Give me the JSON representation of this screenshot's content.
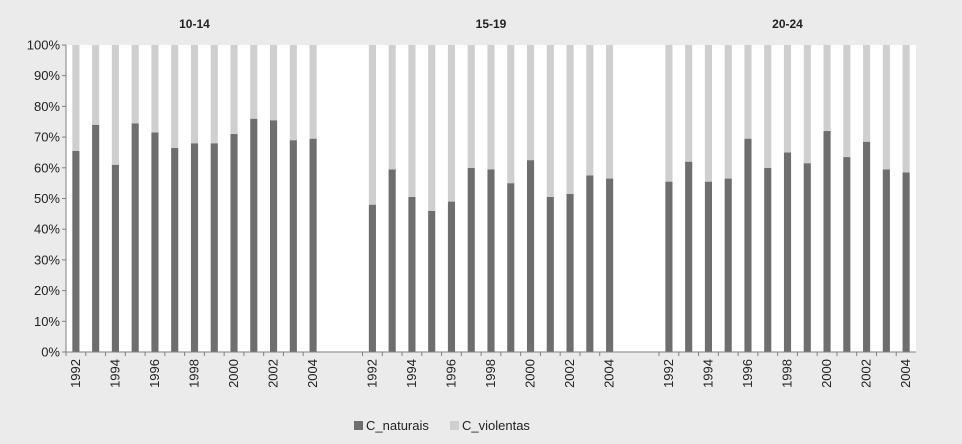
{
  "chart_data": {
    "type": "bar",
    "stacked": true,
    "percent": true,
    "groups": [
      "10-14",
      "15-19",
      "20-24"
    ],
    "years": [
      1992,
      1993,
      1994,
      1995,
      1996,
      1997,
      1998,
      1999,
      2000,
      2001,
      2002,
      2003,
      2004
    ],
    "x_tick_labels": [
      "1992",
      "1994",
      "1996",
      "1998",
      "2000",
      "2002",
      "2004"
    ],
    "y_ticks": [
      "0%",
      "10%",
      "20%",
      "30%",
      "40%",
      "50%",
      "60%",
      "70%",
      "80%",
      "90%",
      "100%"
    ],
    "ylim": [
      0,
      100
    ],
    "series": [
      {
        "name": "C_naturais",
        "color": "#6e6e6e",
        "values": [
          [
            65.5,
            74,
            61,
            74.5,
            71.5,
            66.5,
            68,
            68,
            71,
            76,
            75.5,
            69,
            69.5
          ],
          [
            48,
            59.5,
            50.5,
            46,
            49,
            60,
            59.5,
            55,
            62.5,
            50.5,
            51.5,
            57.5,
            56.5
          ],
          [
            55.5,
            62,
            55.5,
            56.5,
            69.5,
            60,
            65,
            61.5,
            72,
            63.5,
            68.5,
            59.5,
            58.5
          ]
        ]
      },
      {
        "name": "C_violentas",
        "color": "#cfcfcf",
        "values": [
          [
            34.5,
            26,
            39,
            25.5,
            28.5,
            33.5,
            32,
            32,
            29,
            24,
            24.5,
            31,
            30.5
          ],
          [
            52,
            40.5,
            49.5,
            54,
            51,
            40,
            40.5,
            45,
            37.5,
            49.5,
            48.5,
            42.5,
            43.5
          ],
          [
            44.5,
            38,
            44.5,
            43.5,
            30.5,
            40,
            35,
            38.5,
            28,
            36.5,
            31.5,
            40.5,
            41.5
          ]
        ]
      }
    ],
    "grid": false,
    "legend_position": "bottom-center",
    "xlabel": "",
    "ylabel": ""
  },
  "colors": {
    "background": "#ebebeb",
    "plot_background": "#ffffff",
    "axis": "#808080"
  }
}
